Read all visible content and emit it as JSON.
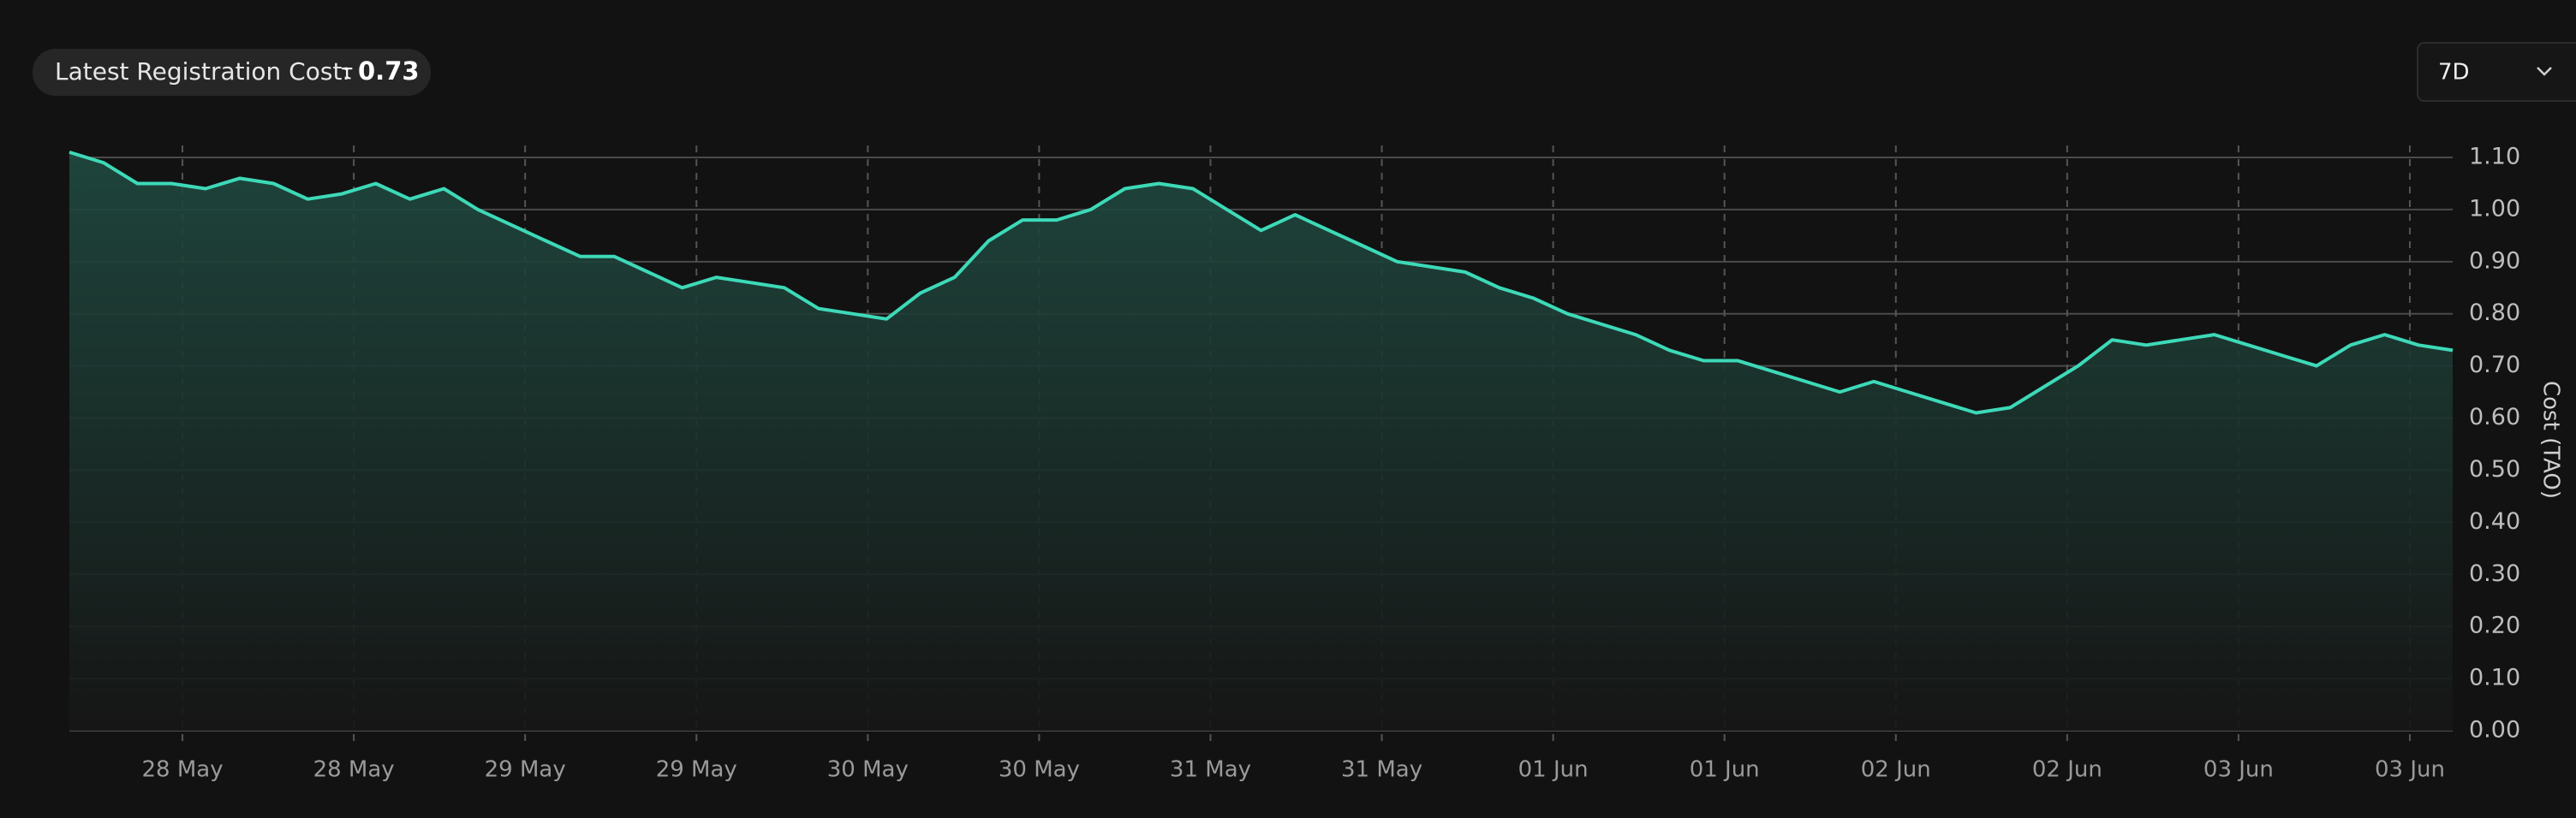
{
  "header": {
    "label": "Latest Registration Cost:",
    "symbol": "τ",
    "value": 0.73
  },
  "range_selector": "7D",
  "chart_data": {
    "type": "area",
    "y_axis_label": "Cost (TAO)",
    "series": [
      {
        "name": "Cost (TAO)",
        "color": "#3dd9b8",
        "values": [
          1.11,
          1.09,
          1.05,
          1.05,
          1.04,
          1.06,
          1.05,
          1.02,
          1.03,
          1.05,
          1.02,
          1.04,
          1.0,
          0.97,
          0.94,
          0.91,
          0.91,
          0.88,
          0.85,
          0.87,
          0.86,
          0.85,
          0.81,
          0.8,
          0.79,
          0.84,
          0.87,
          0.94,
          0.98,
          0.98,
          1.0,
          1.04,
          1.05,
          1.04,
          1.0,
          0.96,
          0.99,
          0.96,
          0.93,
          0.9,
          0.89,
          0.88,
          0.85,
          0.83,
          0.8,
          0.78,
          0.76,
          0.73,
          0.71,
          0.71,
          0.69,
          0.67,
          0.65,
          0.67,
          0.65,
          0.63,
          0.61,
          0.62,
          0.66,
          0.7,
          0.75,
          0.74,
          0.75,
          0.76,
          0.74,
          0.72,
          0.7,
          0.74,
          0.76,
          0.74,
          0.73
        ]
      }
    ],
    "xtick_labels": [
      "28 May",
      "28 May",
      "29 May",
      "29 May",
      "30 May",
      "30 May",
      "31 May",
      "31 May",
      "01 Jun",
      "01 Jun",
      "02 Jun",
      "02 Jun",
      "03 Jun",
      "03 Jun"
    ],
    "ylim": [
      0,
      1.1
    ],
    "yticks": [
      {
        "value": 0,
        "label": "0.00"
      },
      {
        "value": 0.1,
        "label": "0.10"
      },
      {
        "value": 0.2,
        "label": "0.20"
      },
      {
        "value": 0.3,
        "label": "0.30"
      },
      {
        "value": 0.4,
        "label": "0.40"
      },
      {
        "value": 0.5,
        "label": "0.50"
      },
      {
        "value": 0.6,
        "label": "0.60"
      },
      {
        "value": 0.7,
        "label": "0.70"
      },
      {
        "value": 0.8,
        "label": "0.80"
      },
      {
        "value": 0.9,
        "label": "0.90"
      },
      {
        "value": 1,
        "label": "1.00"
      },
      {
        "value": 1.1,
        "label": "1.10"
      }
    ],
    "grid": true
  }
}
